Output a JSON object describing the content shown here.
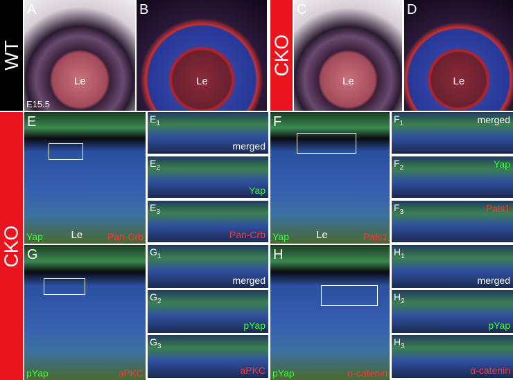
{
  "top_row": {
    "genotype_labels": [
      "WT",
      "CKO"
    ],
    "panels": [
      {
        "letter": "A",
        "lens": "Le",
        "stage": "E15.5"
      },
      {
        "letter": "B",
        "lens": "Le"
      },
      {
        "letter": "C",
        "lens": "Le"
      },
      {
        "letter": "D",
        "lens": "Le"
      }
    ]
  },
  "side_label": "CKO",
  "panels": [
    {
      "letter": "E",
      "stain_left": "Yap",
      "stain_right": "Pan-Crb",
      "lens": "Le",
      "insets": [
        {
          "letter": "E",
          "sub": "1",
          "label": "merged"
        },
        {
          "letter": "E",
          "sub": "2",
          "label": "Yap"
        },
        {
          "letter": "E",
          "sub": "3",
          "label": "Pan-Crb"
        }
      ]
    },
    {
      "letter": "F",
      "stain_left": "Yap",
      "stain_right": "Pals1",
      "lens": "Le",
      "insets": [
        {
          "letter": "F",
          "sub": "1",
          "label": "merged"
        },
        {
          "letter": "F",
          "sub": "2",
          "label": "Yap"
        },
        {
          "letter": "F",
          "sub": "3",
          "label": "Pals1"
        }
      ]
    },
    {
      "letter": "G",
      "stain_left": "pYap",
      "stain_right": "aPKC",
      "insets": [
        {
          "letter": "G",
          "sub": "1",
          "label": "merged"
        },
        {
          "letter": "G",
          "sub": "2",
          "label": "pYap"
        },
        {
          "letter": "G",
          "sub": "3",
          "label": "aPKC"
        }
      ]
    },
    {
      "letter": "H",
      "stain_left": "pYap",
      "stain_right": "α-catenin",
      "insets": [
        {
          "letter": "H",
          "sub": "1",
          "label": "merged"
        },
        {
          "letter": "H",
          "sub": "2",
          "label": "pYap"
        },
        {
          "letter": "H",
          "sub": "3",
          "label": "α-catenin"
        }
      ]
    }
  ]
}
